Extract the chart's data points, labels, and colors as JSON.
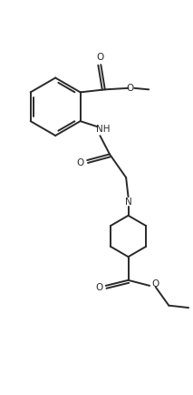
{
  "bg_color": "#ffffff",
  "line_color": "#2a2a2a",
  "lw": 1.4,
  "figsize": [
    2.13,
    4.34
  ],
  "dpi": 100,
  "xlim": [
    -1.5,
    5.5
  ],
  "ylim": [
    -1.0,
    11.0
  ]
}
